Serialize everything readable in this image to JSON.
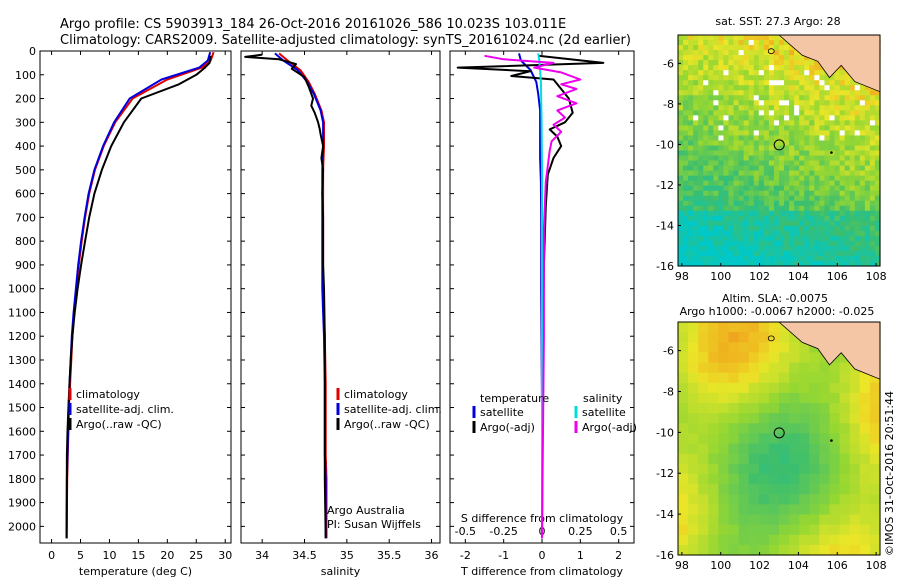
{
  "header": {
    "line1": "Argo profile: CS 5903913_184 26-Oct-2016 20161026_586 10.023S 103.011E",
    "line2": "Climatology: CARS2009. Satellite-adjusted climatology: synTS_20161024.nc (2d earlier)"
  },
  "depth_ticks": [
    0,
    100,
    200,
    300,
    400,
    500,
    600,
    700,
    800,
    900,
    1000,
    1100,
    1200,
    1300,
    1400,
    1500,
    1600,
    1700,
    1800,
    1900,
    2000
  ],
  "chart_data": [
    {
      "type": "line",
      "id": "temperature",
      "xlabel": "temperature (deg C)",
      "xlim": [
        -2,
        31
      ],
      "ylim": [
        0,
        2070
      ],
      "xticks": [
        0,
        5,
        10,
        15,
        20,
        25,
        30
      ],
      "legend": [
        "climatology",
        "satellite-adj. clim.",
        "Argo(..raw -QC)"
      ],
      "legend_colors": [
        "#e00000",
        "#0000dd",
        "#000000"
      ],
      "series": [
        {
          "name": "climatology",
          "color": "#e00000",
          "x": [
            28,
            27.5,
            26,
            20,
            14,
            11,
            9,
            7.5,
            6.5,
            5.8,
            5.2,
            4.7,
            4.3,
            3.9,
            3.6,
            3.4,
            3.2,
            3.0,
            2.9,
            2.8,
            2.7,
            2.6
          ],
          "y": [
            5,
            40,
            70,
            120,
            200,
            300,
            400,
            500,
            600,
            700,
            800,
            900,
            1000,
            1100,
            1200,
            1300,
            1400,
            1500,
            1600,
            1700,
            1800,
            2050
          ]
        },
        {
          "name": "satellite-adj. clim.",
          "color": "#0000dd",
          "x": [
            27.4,
            27,
            25.5,
            19,
            13.5,
            10.8,
            8.9,
            7.4,
            6.4,
            5.7,
            5.1,
            4.6,
            4.2,
            3.8,
            3.5,
            3.3,
            3.1,
            2.95,
            2.85,
            2.75,
            2.65,
            2.6
          ],
          "y": [
            5,
            40,
            70,
            120,
            200,
            300,
            400,
            500,
            600,
            700,
            800,
            900,
            1000,
            1100,
            1200,
            1300,
            1400,
            1500,
            1600,
            1700,
            1800,
            2050
          ]
        },
        {
          "name": "Argo(..raw -QC)",
          "color": "#000000",
          "x": [
            27.5,
            27.3,
            26.5,
            25,
            22,
            15.5,
            12.5,
            10.3,
            8.7,
            7.4,
            6.5,
            5.8,
            5.1,
            4.5,
            4.0,
            3.6,
            3.3,
            3.1,
            2.9,
            2.75,
            2.65,
            2.6
          ],
          "y": [
            20,
            50,
            70,
            100,
            140,
            200,
            300,
            400,
            500,
            600,
            700,
            800,
            900,
            1000,
            1100,
            1200,
            1300,
            1400,
            1500,
            1600,
            1700,
            2050
          ]
        }
      ]
    },
    {
      "type": "line",
      "id": "salinity",
      "xlabel": "salinity",
      "xlim": [
        33.75,
        36.1
      ],
      "ylim": [
        0,
        2070
      ],
      "xticks": [
        34,
        34.5,
        35,
        35.5,
        36
      ],
      "legend": [
        "climatology",
        "satellite-adj. clim.",
        "Argo(..raw -QC)"
      ],
      "legend_colors": [
        "#e00000",
        "#0000dd",
        "#000000"
      ],
      "annotation": [
        "Argo Australia",
        "PI: Susan Wijffels"
      ],
      "series": [
        {
          "name": "climatology",
          "color": "#e00000",
          "x": [
            34.2,
            34.3,
            34.45,
            34.55,
            34.62,
            34.7,
            34.73,
            34.73,
            34.72,
            34.72,
            34.72,
            34.72,
            34.72,
            34.72,
            34.73,
            34.74,
            34.75,
            34.75,
            34.75,
            34.75,
            34.76,
            34.76
          ],
          "y": [
            10,
            40,
            80,
            130,
            180,
            250,
            300,
            400,
            500,
            600,
            700,
            800,
            900,
            1000,
            1100,
            1200,
            1400,
            1500,
            1600,
            1700,
            1800,
            2050
          ]
        },
        {
          "name": "satellite-adj. clim.",
          "color": "#0000dd",
          "x": [
            34.15,
            34.25,
            34.42,
            34.53,
            34.61,
            34.69,
            34.72,
            34.72,
            34.71,
            34.71,
            34.71,
            34.71,
            34.71,
            34.71,
            34.72,
            34.73,
            34.74,
            34.74,
            34.74,
            34.74,
            34.75,
            34.75
          ],
          "y": [
            10,
            40,
            80,
            130,
            180,
            250,
            300,
            400,
            500,
            600,
            700,
            800,
            900,
            1000,
            1100,
            1200,
            1400,
            1500,
            1600,
            1700,
            1800,
            2050
          ]
        },
        {
          "name": "Argo(..raw -QC)",
          "color": "#000000",
          "x": [
            34.0,
            33.8,
            34.2,
            34.4,
            34.35,
            34.5,
            34.55,
            34.6,
            34.58,
            34.62,
            34.66,
            34.68,
            34.69,
            34.72,
            34.7,
            34.72,
            34.71,
            34.72,
            34.72,
            34.72,
            34.73,
            34.74,
            34.74,
            34.74,
            34.75
          ],
          "y": [
            15,
            25,
            35,
            55,
            75,
            110,
            150,
            200,
            230,
            260,
            300,
            330,
            350,
            400,
            450,
            500,
            600,
            700,
            800,
            900,
            1000,
            1200,
            1500,
            1800,
            2050
          ]
        }
      ]
    },
    {
      "type": "line",
      "id": "difference",
      "xlabel": "T difference from climatology",
      "xlabel_top": "S difference from climatology",
      "xlim": [
        -2.4,
        2.4
      ],
      "ylim": [
        0,
        2070
      ],
      "xticks": [
        -2,
        -1,
        0,
        1,
        2
      ],
      "xticks_top": [
        -0.5,
        -0.25,
        0,
        0.25,
        0.5
      ],
      "legend_left_title": "temperature",
      "legend_left": [
        "satellite",
        "Argo(-adj)"
      ],
      "legend_left_colors": [
        "#0000dd",
        "#000000"
      ],
      "legend_right_title": "salinity",
      "legend_right": [
        "satellite",
        "Argo(-adj)"
      ],
      "legend_right_colors": [
        "#00dddd",
        "#ee00ee"
      ],
      "series": [
        {
          "name": "T satellite",
          "color": "#0000dd",
          "x": [
            -0.6,
            -0.55,
            -0.3,
            -0.15,
            -0.1,
            -0.05,
            -0.05,
            -0.05,
            -0.03,
            -0.02,
            -0.02,
            0,
            0
          ],
          "y": [
            10,
            40,
            80,
            130,
            180,
            250,
            350,
            450,
            550,
            700,
            1000,
            1500,
            2050
          ]
        },
        {
          "name": "T Argo(-adj)",
          "color": "#000000",
          "x": [
            -0.1,
            1.6,
            -2.2,
            -0.3,
            -0.8,
            0.3,
            0.5,
            0.7,
            0.8,
            0.6,
            0.2,
            0.4,
            0.5,
            0.3,
            0.15,
            0.1,
            0.05,
            0.02,
            0
          ],
          "y": [
            20,
            50,
            70,
            85,
            105,
            120,
            160,
            200,
            260,
            300,
            330,
            360,
            400,
            450,
            520,
            650,
            900,
            1300,
            2050
          ]
        },
        {
          "name": "S satellite",
          "color": "#00dddd",
          "x": [
            -0.1,
            -0.07,
            -0.05,
            -0.03,
            -0.02,
            -0.01,
            0,
            0,
            0
          ],
          "y": [
            10,
            40,
            80,
            130,
            200,
            300,
            500,
            1000,
            2050
          ]
        },
        {
          "name": "S Argo(-adj)",
          "color": "#ee00ee",
          "x": [
            -1.5,
            -1.0,
            0.3,
            -0.2,
            0.5,
            1.0,
            0.5,
            0.9,
            0.4,
            0.9,
            0.4,
            0.6,
            0.3,
            0.5,
            0.25,
            0.2,
            0.1,
            0.05,
            0.05,
            0
          ],
          "y": [
            20,
            35,
            50,
            70,
            90,
            120,
            140,
            160,
            190,
            220,
            250,
            280,
            310,
            340,
            380,
            420,
            550,
            750,
            1200,
            2050
          ]
        }
      ]
    }
  ],
  "maps": [
    {
      "id": "sst",
      "title": "sat. SST: 27.3  Argo: 28",
      "type": "heatmap",
      "xlim": [
        97.8,
        108.2
      ],
      "ylim": [
        -16,
        -4.6
      ],
      "xticks": [
        98,
        100,
        102,
        104,
        106,
        108
      ],
      "yticks": [
        -6,
        -8,
        -10,
        -12,
        -14,
        -16
      ]
    },
    {
      "id": "sla",
      "title": "Altim. SLA: -0.0075",
      "subtitle": "Argo h1000: -0.0067  h2000: -0.025",
      "type": "heatmap",
      "xlim": [
        97.8,
        108.2
      ],
      "ylim": [
        -16,
        -4.6
      ],
      "xticks": [
        98,
        100,
        102,
        104,
        106,
        108
      ],
      "yticks": [
        -6,
        -8,
        -10,
        -12,
        -14,
        -16
      ]
    }
  ],
  "footer": {
    "stamp": "©IMOS 31-Oct-2016 20:51:44"
  }
}
